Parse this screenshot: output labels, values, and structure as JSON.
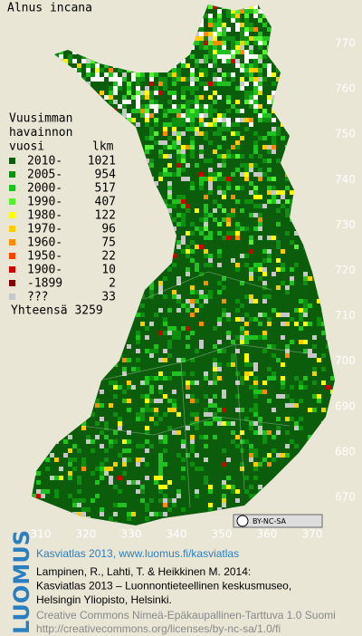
{
  "map": {
    "title": "Alnus incana",
    "y_labels": [
      "770",
      "760",
      "750",
      "740",
      "730",
      "720",
      "710",
      "700",
      "690",
      "680",
      "670"
    ],
    "x_labels": [
      "310",
      "320",
      "330",
      "340",
      "350",
      "360",
      "370"
    ],
    "badge": "BY-NC-SA"
  },
  "legend": {
    "heading": [
      "Vuusimman",
      "havainnon",
      "vuosi"
    ],
    "count_heading": "lkm",
    "entries": [
      {
        "label": "2010-",
        "count": "1021",
        "color": "#0b5d0b"
      },
      {
        "label": "2005-",
        "count": "954",
        "color": "#0f8f0f"
      },
      {
        "label": "2000-",
        "count": "517",
        "color": "#1fc21f"
      },
      {
        "label": "1990-",
        "count": "407",
        "color": "#55f030"
      },
      {
        "label": "1980-",
        "count": "122",
        "color": "#ffff00"
      },
      {
        "label": "1970-",
        "count": "96",
        "color": "#ffcc00"
      },
      {
        "label": "1960-",
        "count": "75",
        "color": "#ff8c00"
      },
      {
        "label": "1950-",
        "count": "22",
        "color": "#ff4000"
      },
      {
        "label": "1900-",
        "count": "10",
        "color": "#d00000"
      },
      {
        "label": "-1899",
        "count": "2",
        "color": "#800000"
      },
      {
        "label": "???",
        "count": "33",
        "color": "#c8c8c8"
      }
    ],
    "total": "Yhteensä 3259"
  },
  "footer": {
    "brand": "LUOMUS",
    "title": "Kasviatlas 2013, www.luomus.fi/kasviatlas",
    "citation": [
      "Lampinen, R., Lahti, T. & Heikkinen M. 2014:",
      "Kasviatlas 2013 – Luonnontieteellinen keskusmuseo,",
      "Helsingin Yliopisto, Helsinki."
    ],
    "license": [
      "Creative Commons Nimeä-Epäkaupallinen-Tarttuva 1.0 Suomi",
      "http://creativecommons.org/licenses/by-nc-sa/1.0/fi"
    ]
  }
}
